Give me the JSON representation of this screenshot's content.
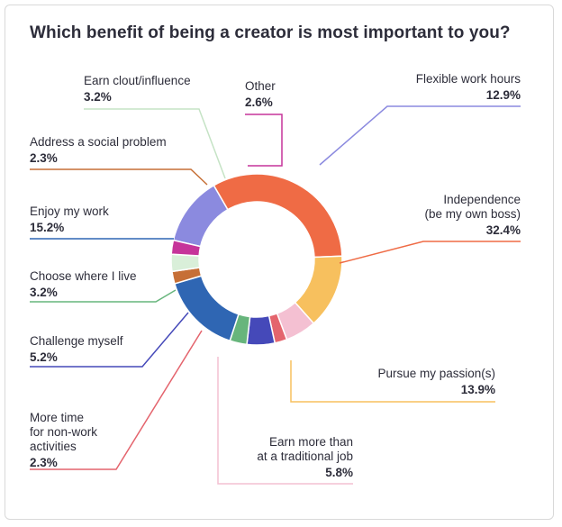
{
  "chart_data": {
    "type": "pie",
    "variant": "donut",
    "title": "Which benefit of being a creator is most important to you?",
    "value_suffix": "%",
    "slices": [
      {
        "label": [
          "Flexible work hours"
        ],
        "value": 12.9,
        "color": "#8b8adf"
      },
      {
        "label": [
          "Independence",
          "(be my own boss)"
        ],
        "value": 32.4,
        "color": "#ef6b45"
      },
      {
        "label": [
          "Pursue my passion(s)"
        ],
        "value": 13.9,
        "color": "#f7c05e"
      },
      {
        "label": [
          "Earn more than",
          "at a traditional job"
        ],
        "value": 5.8,
        "color": "#f4c0d2"
      },
      {
        "label": [
          "More time",
          "for non-work",
          "activities"
        ],
        "value": 2.3,
        "color": "#e4646d"
      },
      {
        "label": [
          "Challenge myself"
        ],
        "value": 5.2,
        "color": "#4549b9"
      },
      {
        "label": [
          "Choose where I live"
        ],
        "value": 3.2,
        "color": "#67b57c"
      },
      {
        "label": [
          "Enjoy my work"
        ],
        "value": 15.2,
        "color": "#2f66b3"
      },
      {
        "label": [
          "Address a social problem"
        ],
        "value": 2.3,
        "color": "#c66f36"
      },
      {
        "label": [
          "Earn clout/influence"
        ],
        "value": 3.2,
        "color": "#d9efd9"
      },
      {
        "label": [
          "Other"
        ],
        "value": 2.6,
        "color": "#c6349a"
      }
    ]
  }
}
